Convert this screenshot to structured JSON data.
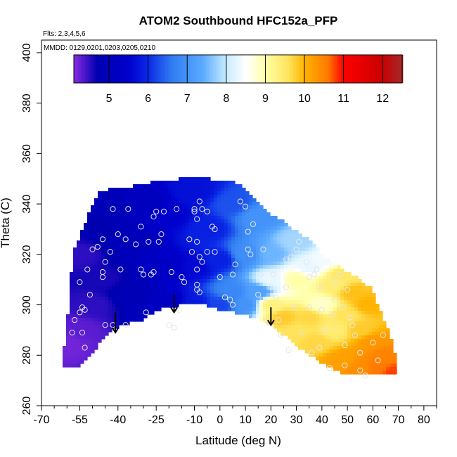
{
  "chart_data": {
    "type": "heatmap",
    "title": "ATOM2 Southbound HFC152a_PFP",
    "notes": {
      "flights": "Flts: 2,3,4,5,6",
      "dates": "MMDD: 0129,0201,0203,0205,0210"
    },
    "xlabel": "Latitude (deg N)",
    "ylabel": "Theta (C)",
    "xlim": [
      -70,
      85
    ],
    "ylim": [
      260,
      405
    ],
    "x_ticks_major": [
      -70,
      -55,
      -40,
      -25,
      -10,
      0,
      10,
      20,
      30,
      40,
      50,
      60,
      70,
      80
    ],
    "x_tick_labels": [
      "-70",
      "-55",
      "-40",
      "-25",
      "-10",
      "0",
      "10",
      "20",
      "30",
      "40",
      "50",
      "60",
      "70",
      "80"
    ],
    "x_ticks_minor": [
      -65,
      -60,
      -50,
      -45,
      -35,
      -30,
      -20,
      -15,
      -5,
      5,
      15,
      25,
      35,
      45,
      55,
      65,
      75,
      85
    ],
    "y_ticks": [
      260,
      280,
      300,
      320,
      340,
      360,
      380,
      400
    ],
    "y_tick_labels": [
      "260",
      "280",
      "300",
      "320",
      "340",
      "360",
      "380",
      "400"
    ],
    "colorbar": {
      "range": [
        4.1,
        12.5
      ],
      "ticks": [
        5,
        6,
        7,
        8,
        9,
        10,
        11,
        12
      ],
      "tick_labels": [
        "5",
        "6",
        "7",
        "8",
        "9",
        "10",
        "11",
        "12"
      ],
      "colors": [
        {
          "v": 4.1,
          "c": "#8a2be2"
        },
        {
          "v": 4.7,
          "c": "#0000b0"
        },
        {
          "v": 5.5,
          "c": "#0000cc"
        },
        {
          "v": 6.0,
          "c": "#0a28e6"
        },
        {
          "v": 6.6,
          "c": "#2f7cf2"
        },
        {
          "v": 7.4,
          "c": "#5aaaff"
        },
        {
          "v": 8.0,
          "c": "#c8ecff"
        },
        {
          "v": 8.5,
          "c": "#ffffff"
        },
        {
          "v": 9.0,
          "c": "#ffffa8"
        },
        {
          "v": 9.6,
          "c": "#ffe35a"
        },
        {
          "v": 10.0,
          "c": "#ffb300"
        },
        {
          "v": 10.6,
          "c": "#ff7a00"
        },
        {
          "v": 11.0,
          "c": "#ff0000"
        },
        {
          "v": 12.0,
          "c": "#c80000"
        },
        {
          "v": 12.5,
          "c": "#a52a2a"
        }
      ]
    },
    "coverage": {
      "top": [
        [
          -57,
          322
        ],
        [
          -55,
          327
        ],
        [
          -52,
          335
        ],
        [
          -50,
          339
        ],
        [
          -47,
          345
        ],
        [
          -43,
          346
        ],
        [
          -35,
          347
        ],
        [
          -25,
          349
        ],
        [
          -15,
          350
        ],
        [
          -5,
          350
        ],
        [
          5,
          349
        ],
        [
          10,
          346
        ],
        [
          15,
          340
        ],
        [
          20,
          336
        ],
        [
          25,
          333
        ],
        [
          30,
          329
        ],
        [
          35,
          326
        ],
        [
          40,
          320
        ],
        [
          45,
          316
        ],
        [
          50,
          313
        ],
        [
          55,
          310
        ],
        [
          60,
          306
        ],
        [
          62,
          300
        ]
      ],
      "bottom": [
        [
          -57,
          275
        ],
        [
          -55,
          276
        ],
        [
          -50,
          281
        ],
        [
          -47,
          285
        ],
        [
          -43,
          290
        ],
        [
          -40,
          291
        ],
        [
          -35,
          293
        ],
        [
          -30,
          294
        ],
        [
          -25,
          298
        ],
        [
          -20,
          299
        ],
        [
          -10,
          301
        ],
        [
          0,
          298
        ],
        [
          5,
          297
        ],
        [
          10,
          296
        ],
        [
          15,
          294
        ],
        [
          20,
          292
        ],
        [
          25,
          288
        ],
        [
          30,
          284
        ],
        [
          35,
          280
        ],
        [
          40,
          277
        ],
        [
          45,
          274
        ],
        [
          50,
          272
        ],
        [
          55,
          272
        ],
        [
          60,
          272
        ],
        [
          65,
          272
        ],
        [
          70,
          272
        ]
      ],
      "left_edge": [
        [
          -62,
          275
        ],
        [
          -60,
          292
        ],
        [
          -59,
          306
        ],
        [
          -58,
          316
        ]
      ],
      "right_edge": [
        [
          62,
          300
        ],
        [
          66,
          290
        ],
        [
          69,
          280
        ],
        [
          70,
          272
        ]
      ]
    },
    "field_anchors": [
      [
        -60,
        285,
        4.2
      ],
      [
        -55,
        290,
        4.3
      ],
      [
        -50,
        300,
        4.5
      ],
      [
        -45,
        310,
        4.6
      ],
      [
        -55,
        320,
        4.5
      ],
      [
        -50,
        330,
        4.7
      ],
      [
        -45,
        340,
        4.9
      ],
      [
        -35,
        305,
        4.9
      ],
      [
        -35,
        325,
        5.0
      ],
      [
        -30,
        340,
        5.1
      ],
      [
        -20,
        300,
        5.2
      ],
      [
        -20,
        315,
        5.3
      ],
      [
        -20,
        335,
        5.5
      ],
      [
        -10,
        300,
        5.8
      ],
      [
        -10,
        315,
        5.6
      ],
      [
        -10,
        345,
        5.7
      ],
      [
        -5,
        330,
        5.9
      ],
      [
        0,
        300,
        6.2
      ],
      [
        0,
        318,
        5.9
      ],
      [
        5,
        340,
        6.3
      ],
      [
        5,
        305,
        6.8
      ],
      [
        10,
        300,
        7.0
      ],
      [
        10,
        320,
        6.9
      ],
      [
        15,
        335,
        7.0
      ],
      [
        15,
        305,
        7.2
      ],
      [
        20,
        320,
        7.5
      ],
      [
        20,
        310,
        8.3
      ],
      [
        20,
        300,
        9.3
      ],
      [
        25,
        295,
        9.8
      ],
      [
        30,
        325,
        7.8
      ],
      [
        30,
        310,
        9.0
      ],
      [
        30,
        290,
        9.6
      ],
      [
        35,
        315,
        8.3
      ],
      [
        35,
        295,
        9.7
      ],
      [
        38,
        285,
        9.7
      ],
      [
        40,
        300,
        8.8
      ],
      [
        42,
        318,
        8.4
      ],
      [
        45,
        308,
        9.4
      ],
      [
        45,
        290,
        9.4
      ],
      [
        48,
        312,
        9.5
      ],
      [
        48,
        278,
        10.2
      ],
      [
        50,
        296,
        9.6
      ],
      [
        52,
        305,
        9.9
      ],
      [
        55,
        290,
        9.8
      ],
      [
        55,
        275,
        10.4
      ],
      [
        58,
        300,
        10.0
      ],
      [
        60,
        285,
        10.3
      ],
      [
        62,
        275,
        10.6
      ],
      [
        65,
        280,
        10.5
      ],
      [
        68,
        273,
        10.8
      ]
    ],
    "samples": [
      [
        -58,
        289
      ],
      [
        -57,
        294
      ],
      [
        -55,
        297
      ],
      [
        -54,
        299
      ],
      [
        -54,
        289
      ],
      [
        -53,
        283
      ],
      [
        -53,
        298
      ],
      [
        -55,
        309
      ],
      [
        -52,
        314
      ],
      [
        -51,
        304
      ],
      [
        -50,
        322
      ],
      [
        -48,
        323
      ],
      [
        -46,
        313
      ],
      [
        -45,
        317
      ],
      [
        -46,
        326
      ],
      [
        -46,
        311
      ],
      [
        -45,
        292
      ],
      [
        -43,
        321
      ],
      [
        -42,
        292
      ],
      [
        -42,
        338
      ],
      [
        -40,
        328
      ],
      [
        -39,
        314
      ],
      [
        -37,
        326
      ],
      [
        -37,
        292
      ],
      [
        -36,
        338
      ],
      [
        -33,
        324
      ],
      [
        -31,
        314
      ],
      [
        -31,
        331
      ],
      [
        -30,
        312
      ],
      [
        -29,
        297
      ],
      [
        -28,
        325
      ],
      [
        -27,
        312
      ],
      [
        -26,
        313
      ],
      [
        -26,
        335
      ],
      [
        -25,
        337
      ],
      [
        -24,
        325
      ],
      [
        -23,
        328
      ],
      [
        -22,
        337
      ],
      [
        -20,
        292
      ],
      [
        -19,
        313
      ],
      [
        -18,
        291
      ],
      [
        -17,
        338
      ],
      [
        -16,
        298
      ],
      [
        -15,
        311
      ],
      [
        -14,
        309
      ],
      [
        -12,
        326
      ],
      [
        -11,
        321
      ],
      [
        -10,
        338
      ],
      [
        -10,
        337
      ],
      [
        -9,
        334
      ],
      [
        -9,
        325
      ],
      [
        -9,
        314
      ],
      [
        -8,
        319
      ],
      [
        -7,
        317
      ],
      [
        -8,
        305
      ],
      [
        -9,
        306
      ],
      [
        -9,
        308
      ],
      [
        -8,
        341
      ],
      [
        -7,
        338
      ],
      [
        -5,
        337
      ],
      [
        -5,
        321
      ],
      [
        -3,
        331
      ],
      [
        -2,
        330
      ],
      [
        0,
        311
      ],
      [
        -2,
        321
      ],
      [
        2,
        303
      ],
      [
        4,
        302
      ],
      [
        5,
        300
      ],
      [
        5,
        312
      ],
      [
        6,
        316
      ],
      [
        8,
        341
      ],
      [
        10,
        339
      ],
      [
        11,
        322
      ],
      [
        11,
        329
      ],
      [
        12,
        320
      ],
      [
        13,
        332
      ],
      [
        15,
        304
      ],
      [
        16,
        312
      ],
      [
        17,
        322
      ],
      [
        18,
        294
      ],
      [
        19,
        293
      ],
      [
        20,
        307
      ],
      [
        21,
        312
      ],
      [
        22,
        303
      ],
      [
        23,
        294
      ],
      [
        24,
        288
      ],
      [
        26,
        318
      ],
      [
        26,
        307
      ],
      [
        28,
        319
      ],
      [
        29,
        299
      ],
      [
        30,
        322
      ],
      [
        31,
        325
      ],
      [
        34,
        317
      ],
      [
        35,
        311
      ],
      [
        35,
        299
      ],
      [
        37,
        312
      ],
      [
        38,
        314
      ],
      [
        39,
        307
      ],
      [
        40,
        298
      ],
      [
        41,
        290
      ],
      [
        44,
        296
      ],
      [
        45,
        309
      ],
      [
        45,
        302
      ],
      [
        47,
        312
      ],
      [
        48,
        299
      ],
      [
        49,
        284
      ],
      [
        50,
        306
      ],
      [
        51,
        295
      ],
      [
        52,
        292
      ],
      [
        55,
        281
      ],
      [
        55,
        274
      ],
      [
        57,
        272
      ],
      [
        60,
        285
      ],
      [
        62,
        278
      ],
      [
        64,
        288
      ],
      [
        49,
        276
      ],
      [
        43,
        275
      ],
      [
        39,
        283
      ],
      [
        36,
        281
      ],
      [
        32,
        289
      ],
      [
        27,
        282
      ],
      [
        53,
        288
      ]
    ],
    "arrows": [
      {
        "lat": -41,
        "theta_from": 297,
        "theta_to": 289
      },
      {
        "lat": -18,
        "theta_from": 304,
        "theta_to": 297
      },
      {
        "lat": 20,
        "theta_from": 299,
        "theta_to": 292
      }
    ],
    "grid": false,
    "legend": "colorbar-top"
  },
  "colors": {
    "frame": "#000000",
    "sample_marker": "#e6e6e6",
    "arrow": "#000000",
    "background": "#ffffff"
  }
}
